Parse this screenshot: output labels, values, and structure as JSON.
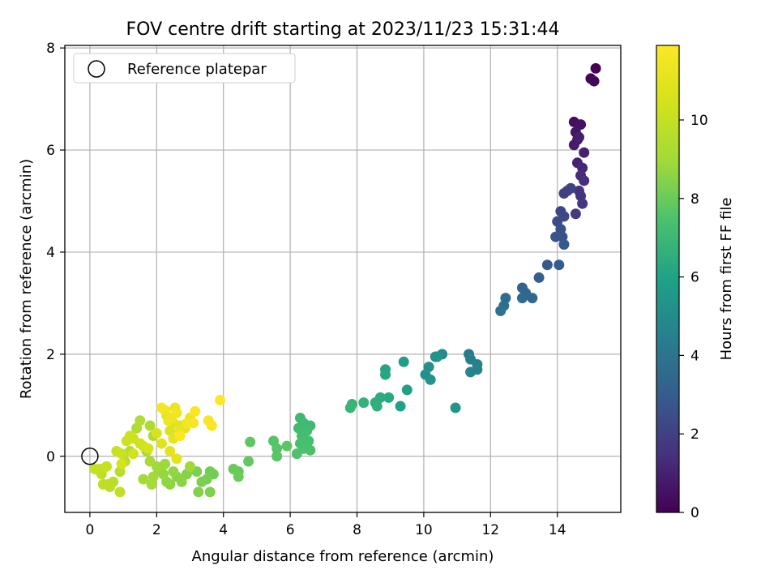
{
  "chart_data": {
    "type": "scatter",
    "title": "FOV centre drift starting at 2023/11/23 15:31:44",
    "xlabel": "Angular distance from reference (arcmin)",
    "ylabel": "Rotation from reference (arcmin)",
    "xlim": [
      -0.75,
      15.9
    ],
    "ylim": [
      -1.1,
      8.05
    ],
    "xticks": [
      0,
      2,
      4,
      6,
      8,
      10,
      12,
      14
    ],
    "yticks": [
      0,
      2,
      4,
      6,
      8
    ],
    "grid": true,
    "legend": {
      "position": "top-left",
      "entries": [
        "Reference platepar"
      ]
    },
    "reference_point": {
      "x": 0,
      "y": 0
    },
    "colorbar": {
      "label": "Hours from first FF file",
      "range": [
        0,
        11.9
      ],
      "ticks": [
        0,
        2,
        4,
        6,
        8,
        10
      ],
      "colormap": "viridis"
    },
    "points": [
      [
        15.15,
        7.6,
        0.05
      ],
      [
        15.0,
        7.4,
        0.1
      ],
      [
        15.1,
        7.35,
        0.15
      ],
      [
        14.5,
        6.55,
        0.4
      ],
      [
        14.7,
        6.5,
        0.5
      ],
      [
        14.55,
        6.35,
        0.6
      ],
      [
        14.6,
        6.2,
        0.7
      ],
      [
        14.5,
        6.1,
        0.8
      ],
      [
        14.65,
        6.25,
        0.9
      ],
      [
        14.8,
        5.95,
        1.0
      ],
      [
        14.6,
        5.75,
        1.1
      ],
      [
        14.75,
        5.65,
        1.2
      ],
      [
        14.7,
        5.5,
        1.3
      ],
      [
        14.8,
        5.4,
        1.4
      ],
      [
        14.65,
        5.2,
        1.5
      ],
      [
        14.7,
        5.1,
        1.6
      ],
      [
        14.75,
        4.95,
        1.7
      ],
      [
        14.55,
        4.75,
        1.8
      ],
      [
        14.3,
        5.2,
        1.9
      ],
      [
        14.2,
        5.15,
        2.0
      ],
      [
        14.4,
        5.25,
        2.1
      ],
      [
        14.1,
        4.8,
        2.2
      ],
      [
        14.2,
        4.7,
        2.3
      ],
      [
        14.0,
        4.6,
        2.4
      ],
      [
        14.1,
        4.45,
        2.5
      ],
      [
        14.15,
        4.3,
        2.6
      ],
      [
        13.95,
        4.3,
        2.7
      ],
      [
        14.2,
        4.15,
        2.8
      ],
      [
        13.7,
        3.75,
        2.9
      ],
      [
        14.05,
        3.75,
        3.0
      ],
      [
        13.45,
        3.5,
        3.1
      ],
      [
        12.95,
        3.3,
        3.3
      ],
      [
        13.05,
        3.2,
        3.4
      ],
      [
        13.25,
        3.1,
        3.5
      ],
      [
        12.95,
        3.1,
        3.6
      ],
      [
        12.45,
        3.1,
        3.7
      ],
      [
        12.4,
        2.95,
        3.8
      ],
      [
        12.3,
        2.85,
        3.9
      ],
      [
        11.35,
        2.0,
        4.3
      ],
      [
        11.4,
        1.9,
        4.4
      ],
      [
        11.6,
        1.8,
        4.5
      ],
      [
        11.6,
        1.7,
        4.6
      ],
      [
        11.4,
        1.65,
        4.7
      ],
      [
        10.55,
        2.0,
        4.9
      ],
      [
        10.35,
        1.95,
        5.0
      ],
      [
        10.15,
        1.75,
        5.1
      ],
      [
        10.05,
        1.6,
        5.2
      ],
      [
        10.2,
        1.5,
        5.3
      ],
      [
        10.4,
        1.95,
        5.4
      ],
      [
        10.95,
        0.95,
        5.5
      ],
      [
        9.4,
        1.85,
        5.8
      ],
      [
        9.5,
        1.3,
        5.9
      ],
      [
        9.3,
        0.98,
        6.0
      ],
      [
        8.85,
        1.7,
        6.1
      ],
      [
        8.85,
        1.6,
        6.2
      ],
      [
        8.95,
        1.15,
        6.3
      ],
      [
        8.7,
        1.15,
        6.4
      ],
      [
        8.55,
        1.05,
        6.5
      ],
      [
        8.6,
        0.98,
        6.6
      ],
      [
        8.2,
        1.05,
        6.7
      ],
      [
        7.85,
        1.02,
        6.8
      ],
      [
        7.8,
        0.95,
        6.9
      ],
      [
        6.3,
        0.75,
        7.0
      ],
      [
        6.4,
        0.65,
        7.05
      ],
      [
        6.6,
        0.6,
        7.1
      ],
      [
        6.25,
        0.55,
        7.15
      ],
      [
        6.5,
        0.5,
        7.2
      ],
      [
        6.35,
        0.4,
        7.25
      ],
      [
        6.55,
        0.3,
        7.3
      ],
      [
        6.3,
        0.25,
        7.35
      ],
      [
        6.4,
        0.15,
        7.4
      ],
      [
        6.6,
        0.12,
        7.45
      ],
      [
        6.2,
        0.05,
        7.5
      ],
      [
        5.5,
        0.3,
        7.6
      ],
      [
        5.6,
        0.15,
        7.65
      ],
      [
        5.6,
        0.0,
        7.7
      ],
      [
        5.9,
        0.2,
        7.75
      ],
      [
        4.8,
        0.28,
        7.8
      ],
      [
        4.75,
        -0.1,
        7.85
      ],
      [
        4.45,
        -0.3,
        7.9
      ],
      [
        4.3,
        -0.25,
        7.95
      ],
      [
        4.45,
        -0.4,
        8.0
      ],
      [
        3.6,
        -0.3,
        8.1
      ],
      [
        3.7,
        -0.35,
        8.15
      ],
      [
        3.5,
        -0.45,
        8.2
      ],
      [
        3.2,
        -0.3,
        8.25
      ],
      [
        3.35,
        -0.5,
        8.3
      ],
      [
        3.6,
        -0.7,
        8.35
      ],
      [
        3.25,
        -0.7,
        8.4
      ],
      [
        2.9,
        -0.35,
        8.45
      ],
      [
        2.6,
        -0.4,
        8.5
      ],
      [
        2.75,
        -0.5,
        8.55
      ],
      [
        2.4,
        -0.55,
        8.6
      ],
      [
        2.3,
        -0.5,
        8.65
      ],
      [
        2.5,
        -0.3,
        8.7
      ],
      [
        2.2,
        -0.35,
        8.75
      ],
      [
        2.05,
        -0.25,
        8.8
      ],
      [
        2.25,
        -0.15,
        8.85
      ],
      [
        2.0,
        -0.2,
        8.9
      ],
      [
        3.0,
        -0.2,
        8.95
      ],
      [
        1.9,
        -0.4,
        9.0
      ],
      [
        1.85,
        -0.55,
        9.05
      ],
      [
        1.6,
        -0.45,
        9.1
      ],
      [
        1.8,
        -0.1,
        9.15
      ],
      [
        1.7,
        0.1,
        9.2
      ],
      [
        1.9,
        0.4,
        9.25
      ],
      [
        1.8,
        0.6,
        9.3
      ],
      [
        1.4,
        0.55,
        9.35
      ],
      [
        1.5,
        0.7,
        9.4
      ],
      [
        1.2,
        0.1,
        9.5
      ],
      [
        1.05,
        -0.1,
        9.55
      ],
      [
        0.9,
        -0.3,
        9.6
      ],
      [
        0.7,
        -0.5,
        9.65
      ],
      [
        0.55,
        -0.55,
        9.7
      ],
      [
        0.6,
        -0.6,
        9.75
      ],
      [
        0.35,
        -0.35,
        9.8
      ],
      [
        0.4,
        -0.55,
        9.85
      ],
      [
        0.9,
        -0.7,
        9.9
      ],
      [
        0.3,
        -0.25,
        9.95
      ],
      [
        0.15,
        -0.25,
        10.0
      ],
      [
        0.5,
        -0.2,
        10.05
      ],
      [
        0.8,
        0.1,
        10.1
      ],
      [
        0.95,
        0.05,
        10.15
      ],
      [
        1.2,
        0.4,
        10.2
      ],
      [
        1.3,
        0.35,
        10.25
      ],
      [
        1.1,
        0.3,
        10.3
      ],
      [
        1.5,
        0.25,
        10.35
      ],
      [
        1.6,
        0.2,
        10.4
      ],
      [
        1.3,
        0.05,
        10.45
      ],
      [
        0.95,
        -0.15,
        10.5
      ],
      [
        1.75,
        0.15,
        10.6
      ],
      [
        2.0,
        0.45,
        10.65
      ],
      [
        2.4,
        0.5,
        10.7
      ],
      [
        2.3,
        0.8,
        10.75
      ],
      [
        2.5,
        0.65,
        10.8
      ],
      [
        2.7,
        0.6,
        10.85
      ],
      [
        2.15,
        0.25,
        10.9
      ],
      [
        2.4,
        0.1,
        10.95
      ],
      [
        2.6,
        -0.05,
        11.0
      ],
      [
        2.5,
        0.35,
        11.1
      ],
      [
        2.85,
        0.55,
        11.15
      ],
      [
        3.0,
        0.75,
        11.2
      ],
      [
        2.7,
        0.5,
        11.25
      ],
      [
        2.35,
        0.7,
        11.3
      ],
      [
        2.55,
        0.95,
        11.35
      ],
      [
        2.25,
        0.9,
        11.4
      ],
      [
        2.45,
        0.75,
        11.45
      ],
      [
        2.6,
        0.85,
        11.5
      ],
      [
        2.15,
        0.95,
        11.55
      ],
      [
        2.9,
        0.65,
        11.6
      ],
      [
        3.1,
        0.65,
        11.65
      ],
      [
        3.55,
        0.7,
        11.7
      ],
      [
        3.65,
        0.6,
        11.75
      ],
      [
        3.15,
        0.88,
        11.8
      ],
      [
        3.9,
        1.1,
        11.85
      ],
      [
        2.7,
        0.4,
        11.9
      ]
    ]
  }
}
